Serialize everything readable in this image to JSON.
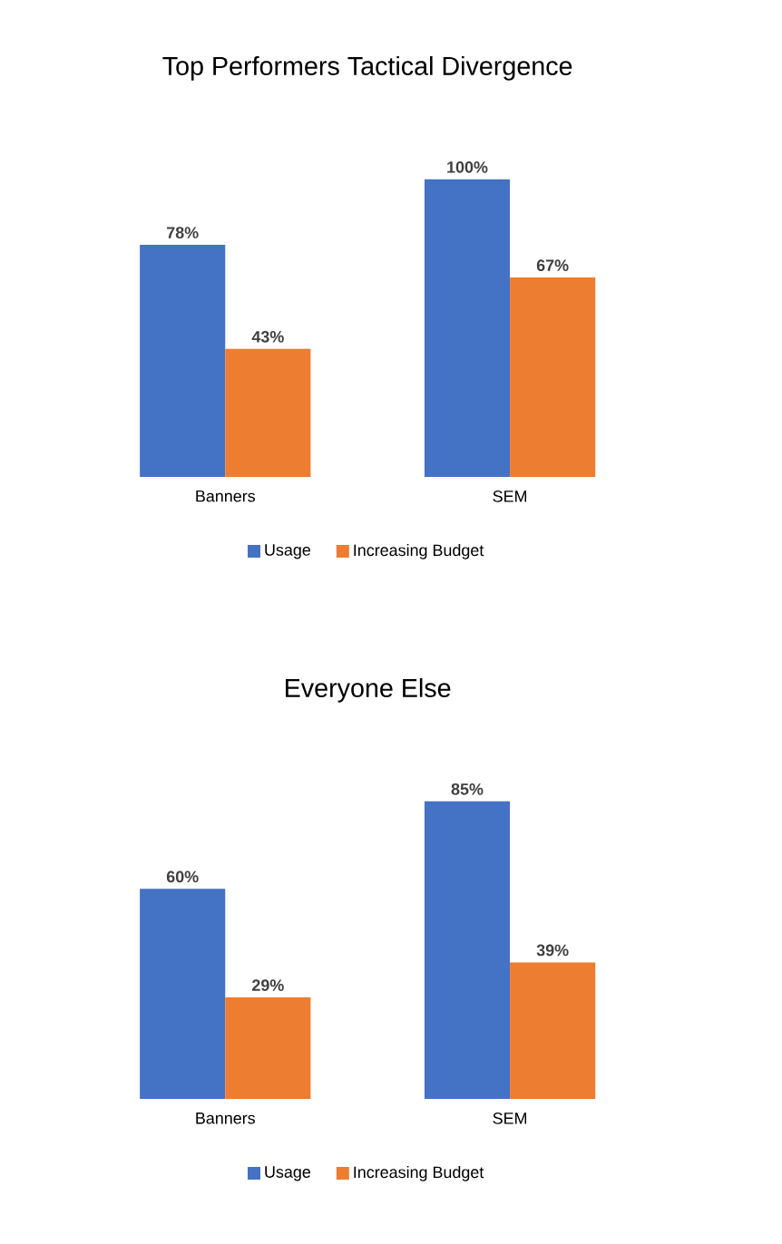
{
  "chart_data": [
    {
      "type": "bar",
      "title": "Top Performers Tactical Divergence",
      "categories": [
        "Banners",
        "SEM"
      ],
      "legend": "bottom",
      "series": [
        {
          "name": "Usage",
          "color": "#4472c4",
          "values": [
            78,
            100
          ],
          "value_labels": [
            "78%",
            "100%"
          ]
        },
        {
          "name": "Increasing Budget",
          "color": "#ed7d31",
          "values": [
            43,
            67
          ],
          "value_labels": [
            "43%",
            "67%"
          ]
        }
      ]
    },
    {
      "type": "bar",
      "title": "Everyone Else",
      "categories": [
        "Banners",
        "SEM"
      ],
      "legend": "bottom",
      "series": [
        {
          "name": "Usage",
          "color": "#4472c4",
          "values": [
            60,
            85
          ],
          "value_labels": [
            "60%",
            "85%"
          ]
        },
        {
          "name": "Increasing Budget",
          "color": "#ed7d31",
          "values": [
            29,
            39
          ],
          "value_labels": [
            "29%",
            "39%"
          ]
        }
      ]
    }
  ]
}
